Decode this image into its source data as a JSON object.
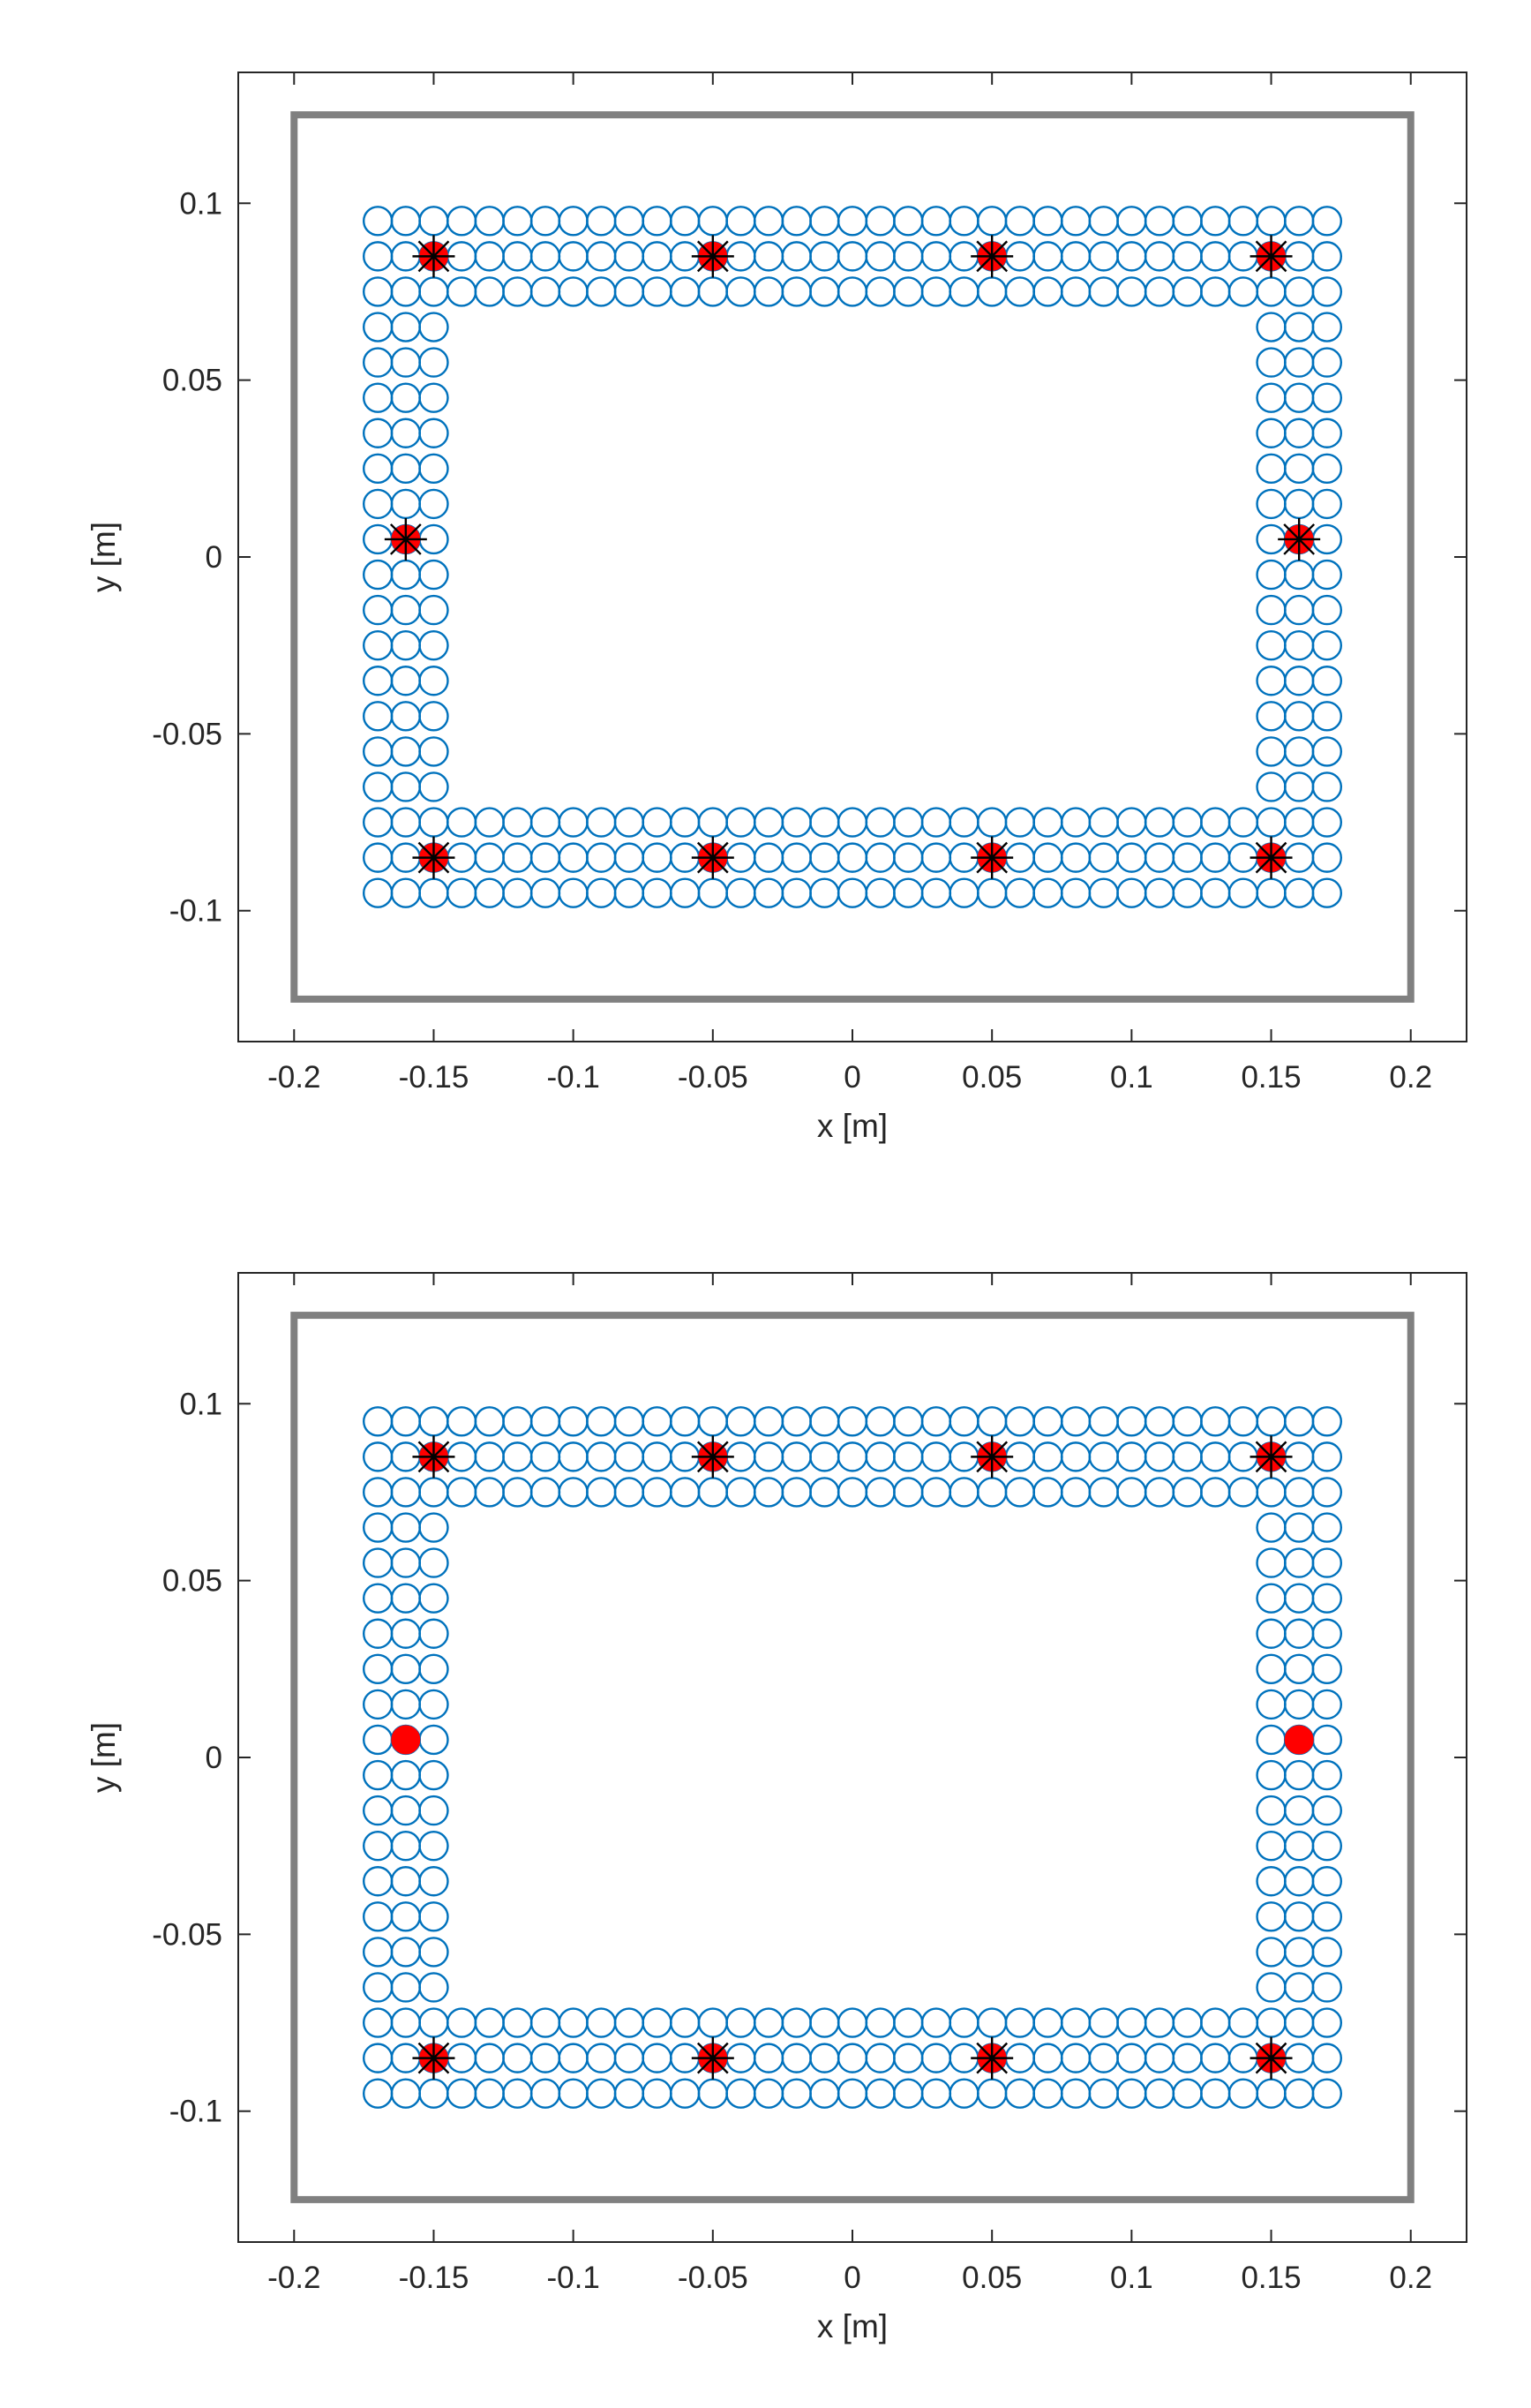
{
  "colors": {
    "array_marker": "#0072BD",
    "selected_fill": "#FF0000",
    "star_marker": "#000000",
    "frame": "#808080",
    "axes": "#262626"
  },
  "chart_data": [
    {
      "type": "scatter",
      "title": "",
      "xlabel": "x [m]",
      "ylabel": "y [m]",
      "xlim": [
        -0.22,
        0.22
      ],
      "ylim": [
        -0.137,
        0.137
      ],
      "xticks": [
        -0.2,
        -0.15,
        -0.1,
        -0.05,
        0,
        0.05,
        0.1,
        0.15,
        0.2
      ],
      "xtick_labels": [
        "-0.2",
        "-0.15",
        "-0.1",
        "-0.05",
        "0",
        "0.05",
        "0.1",
        "0.15",
        "0.2"
      ],
      "yticks": [
        -0.1,
        -0.05,
        0,
        0.05,
        0.1
      ],
      "ytick_labels": [
        "-0.1",
        "-0.05",
        "0",
        "0.05",
        "0.1"
      ],
      "grid": false,
      "room_boundary": {
        "x": [
          -0.2,
          0.2
        ],
        "y": [
          -0.125,
          0.125
        ]
      },
      "candidate_grid": {
        "marker": "open circle",
        "x_start": -0.17,
        "x_step": 0.01,
        "x_count": 35,
        "y_start": -0.095,
        "y_step": 0.01,
        "y_count": 20,
        "ring_width": 3
      },
      "sources": [
        {
          "x": -0.15,
          "y": 0.085,
          "marker": "star"
        },
        {
          "x": -0.05,
          "y": 0.085,
          "marker": "star"
        },
        {
          "x": 0.05,
          "y": 0.085,
          "marker": "star"
        },
        {
          "x": 0.15,
          "y": 0.085,
          "marker": "star"
        },
        {
          "x": -0.16,
          "y": 0.005,
          "marker": "star"
        },
        {
          "x": 0.16,
          "y": 0.005,
          "marker": "star"
        },
        {
          "x": -0.15,
          "y": -0.085,
          "marker": "star"
        },
        {
          "x": -0.05,
          "y": -0.085,
          "marker": "star"
        },
        {
          "x": 0.05,
          "y": -0.085,
          "marker": "star"
        },
        {
          "x": 0.15,
          "y": -0.085,
          "marker": "star"
        }
      ]
    },
    {
      "type": "scatter",
      "title": "",
      "xlabel": "x [m]",
      "ylabel": "y [m]",
      "xlim": [
        -0.22,
        0.22
      ],
      "ylim": [
        -0.137,
        0.137
      ],
      "xticks": [
        -0.2,
        -0.15,
        -0.1,
        -0.05,
        0,
        0.05,
        0.1,
        0.15,
        0.2
      ],
      "xtick_labels": [
        "-0.2",
        "-0.15",
        "-0.1",
        "-0.05",
        "0",
        "0.05",
        "0.1",
        "0.15",
        "0.2"
      ],
      "yticks": [
        -0.1,
        -0.05,
        0,
        0.05,
        0.1
      ],
      "ytick_labels": [
        "-0.1",
        "-0.05",
        "0",
        "0.05",
        "0.1"
      ],
      "grid": false,
      "room_boundary": {
        "x": [
          -0.2,
          0.2
        ],
        "y": [
          -0.125,
          0.125
        ]
      },
      "candidate_grid": {
        "marker": "open circle",
        "x_start": -0.17,
        "x_step": 0.01,
        "x_count": 35,
        "y_start": -0.095,
        "y_step": 0.01,
        "y_count": 20,
        "ring_width": 3
      },
      "sources": [
        {
          "x": -0.15,
          "y": 0.085,
          "marker": "star"
        },
        {
          "x": -0.05,
          "y": 0.085,
          "marker": "star"
        },
        {
          "x": 0.05,
          "y": 0.085,
          "marker": "star"
        },
        {
          "x": 0.15,
          "y": 0.085,
          "marker": "star"
        },
        {
          "x": -0.16,
          "y": 0.005,
          "marker": "none"
        },
        {
          "x": 0.16,
          "y": 0.005,
          "marker": "none"
        },
        {
          "x": -0.15,
          "y": -0.085,
          "marker": "star"
        },
        {
          "x": -0.05,
          "y": -0.085,
          "marker": "star"
        },
        {
          "x": 0.05,
          "y": -0.085,
          "marker": "star"
        },
        {
          "x": 0.15,
          "y": -0.085,
          "marker": "star"
        }
      ]
    }
  ]
}
